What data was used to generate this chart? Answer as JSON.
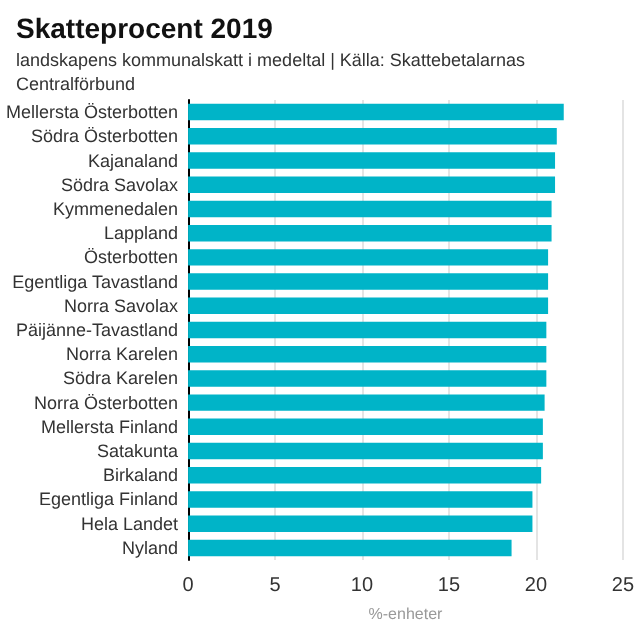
{
  "chart_data": {
    "type": "bar",
    "orientation": "horizontal",
    "title": "Skatteprocent 2019",
    "subtitle": "landskapens kommunalskatt i medeltal | Källa: Skattebetalarnas Centralförbund",
    "xlabel": "%-enheter",
    "categories": [
      "Mellersta Österbotten",
      "Södra Österbotten",
      "Kajanaland",
      "Södra Savolax",
      "Kymmenedalen",
      "Lappland",
      "Österbotten",
      "Egentliga Tavastland",
      "Norra Savolax",
      "Päijänne-Tavastland",
      "Norra Karelen",
      "Södra Karelen",
      "Norra Österbotten",
      "Mellersta Finland",
      "Satakunta",
      "Birkaland",
      "Egentliga Finland",
      "Hela Landet",
      "Nyland"
    ],
    "values": [
      21.6,
      21.2,
      21.1,
      21.1,
      20.9,
      20.9,
      20.7,
      20.7,
      20.7,
      20.6,
      20.6,
      20.6,
      20.5,
      20.4,
      20.4,
      20.3,
      19.8,
      19.8,
      18.6
    ],
    "color": "#00b4c8",
    "xlim": [
      0,
      25
    ],
    "xticks": [
      0,
      5,
      10,
      15,
      20,
      25
    ],
    "grid": "x"
  }
}
